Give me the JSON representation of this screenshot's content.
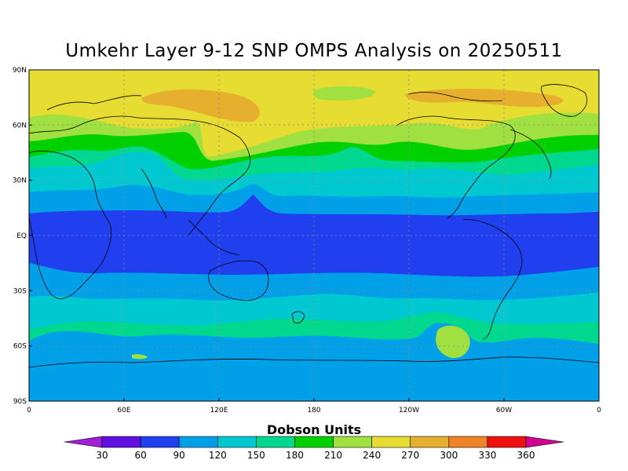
{
  "title": "Umkehr Layer 9-12 SNP OMPS Analysis on 20250511",
  "lat_ticks": [
    "90N",
    "60N",
    "30N",
    "EQ",
    "30S",
    "60S",
    "90S"
  ],
  "lon_ticks": [
    "0",
    "60E",
    "120E",
    "180",
    "120W",
    "60W",
    "0"
  ],
  "colorbar": {
    "title": "Dobson Units",
    "labels": [
      "30",
      "60",
      "90",
      "120",
      "150",
      "180",
      "210",
      "240",
      "270",
      "300",
      "330",
      "360"
    ],
    "colors": [
      "#a020d8",
      "#6010e0",
      "#2040f0",
      "#00a0e8",
      "#00c8d0",
      "#00d890",
      "#00d000",
      "#a0e040",
      "#e6dc32",
      "#e6af2d",
      "#f08228",
      "#f01010",
      "#d00090"
    ]
  },
  "bands": [
    {
      "level": "270",
      "color": "#e6dc32"
    },
    {
      "level": "300",
      "color": "#e6af2d"
    },
    {
      "level": "240",
      "color": "#a0e040"
    },
    {
      "level": "210",
      "color": "#00d000"
    },
    {
      "level": "180",
      "color": "#00d890"
    },
    {
      "level": "150",
      "color": "#00c8d0"
    },
    {
      "level": "120",
      "color": "#00a0e8"
    },
    {
      "level": "90",
      "color": "#2040f0"
    }
  ]
}
